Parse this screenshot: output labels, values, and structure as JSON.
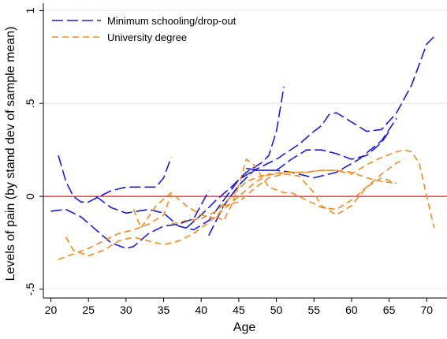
{
  "chart_data": {
    "type": "line",
    "xlabel": "Age",
    "ylabel": "Levels of pain (by stand dev of sample mean)",
    "xlim": [
      19,
      72.7
    ],
    "xticks": [
      20,
      25,
      30,
      35,
      40,
      45,
      50,
      55,
      60,
      65,
      70
    ],
    "ylim": [
      -0.547,
      1.04
    ],
    "yticks": [
      {
        "value": -0.5,
        "label": "-.5"
      },
      0,
      {
        "value": 0.5,
        "label": ".5"
      },
      1
    ],
    "grid": true,
    "hline": {
      "value": 0,
      "color": "#e41a1c"
    },
    "legend": "top-left",
    "series": [
      {
        "name": "Minimum schooling/drop-out",
        "color": "#1a1ad8",
        "dash": "14 5",
        "x": [
          21,
          22,
          23,
          24,
          25,
          26,
          28,
          30,
          32,
          34,
          35,
          36,
          null,
          20,
          22,
          24,
          26,
          28,
          30,
          31,
          33,
          35,
          37,
          39,
          41,
          null,
          26,
          28,
          30,
          33,
          35,
          37,
          39,
          41,
          43,
          45,
          47,
          50,
          52,
          55,
          58,
          61,
          64,
          66,
          null,
          38,
          40,
          42,
          44,
          46,
          48,
          49,
          50,
          51,
          null,
          41,
          43,
          45,
          47,
          50,
          53,
          55,
          56,
          57,
          58,
          60,
          62,
          64,
          66,
          68,
          70,
          71,
          null,
          46,
          48,
          50,
          52,
          54,
          56,
          58,
          60,
          62,
          64,
          65
        ],
        "values": [
          0.22,
          0.08,
          0.0,
          -0.03,
          -0.03,
          -0.01,
          0.03,
          0.05,
          0.05,
          0.05,
          0.1,
          0.21,
          null,
          -0.08,
          -0.07,
          -0.11,
          -0.18,
          -0.25,
          -0.28,
          -0.27,
          -0.2,
          -0.16,
          -0.15,
          -0.12,
          0.03,
          null,
          0.0,
          -0.06,
          -0.09,
          -0.07,
          -0.09,
          -0.16,
          -0.18,
          -0.13,
          -0.02,
          0.09,
          0.14,
          0.14,
          0.13,
          0.1,
          0.13,
          0.2,
          0.3,
          0.42,
          null,
          -0.17,
          -0.1,
          -0.02,
          0.05,
          0.13,
          0.18,
          0.22,
          0.35,
          0.59,
          null,
          -0.21,
          -0.05,
          0.06,
          0.14,
          0.2,
          0.28,
          0.35,
          0.38,
          0.44,
          0.45,
          0.4,
          0.35,
          0.36,
          0.45,
          0.6,
          0.82,
          0.86,
          null,
          0.15,
          0.14,
          0.14,
          0.2,
          0.25,
          0.25,
          0.23,
          0.2,
          0.22,
          0.29,
          0.35
        ]
      },
      {
        "name": "University degree",
        "color": "#f0891e",
        "dash": "8 5",
        "x": [
          21,
          23,
          25,
          27,
          29,
          31,
          33,
          35,
          36,
          null,
          22,
          23,
          25,
          27,
          29,
          31,
          33,
          35,
          37,
          39,
          41,
          43,
          45,
          47,
          49,
          51,
          54,
          56,
          58,
          60,
          62,
          64,
          66,
          null,
          31,
          32,
          34,
          36,
          38,
          40,
          42,
          43,
          45,
          47,
          49,
          51,
          53,
          55,
          56,
          58,
          60,
          62,
          64,
          66,
          null,
          36,
          38,
          40,
          42,
          44,
          46,
          48,
          50,
          52,
          54,
          56,
          58,
          60,
          62,
          64,
          66,
          67,
          68,
          69,
          70,
          71,
          null,
          42,
          43,
          44,
          45,
          46,
          47,
          49,
          51,
          52,
          54,
          56,
          58,
          60,
          62,
          64,
          66,
          67
        ],
        "values": [
          -0.34,
          -0.31,
          -0.28,
          -0.24,
          -0.2,
          -0.18,
          -0.15,
          -0.1,
          0.01,
          null,
          -0.22,
          -0.29,
          -0.32,
          -0.29,
          -0.24,
          -0.22,
          -0.24,
          -0.26,
          -0.24,
          -0.2,
          -0.14,
          -0.07,
          0.0,
          0.07,
          0.12,
          0.13,
          0.13,
          0.14,
          0.14,
          0.13,
          0.1,
          0.08,
          0.07,
          null,
          -0.07,
          -0.17,
          -0.05,
          0.02,
          -0.05,
          -0.1,
          -0.12,
          -0.05,
          -0.03,
          0.04,
          0.1,
          0.12,
          0.11,
          0.02,
          -0.05,
          -0.1,
          -0.05,
          0.05,
          0.1,
          0.07,
          null,
          -0.15,
          -0.13,
          -0.12,
          -0.08,
          0.0,
          0.08,
          0.11,
          0.12,
          0.13,
          0.13,
          0.14,
          0.14,
          0.12,
          0.17,
          0.21,
          0.24,
          0.25,
          0.24,
          0.18,
          0.0,
          -0.17,
          null,
          -0.11,
          -0.13,
          -0.05,
          0.06,
          0.2,
          0.17,
          0.05,
          0.02,
          0.02,
          -0.02,
          -0.06,
          -0.07,
          -0.02,
          0.05,
          0.12,
          0.18,
          0.2
        ]
      }
    ]
  }
}
